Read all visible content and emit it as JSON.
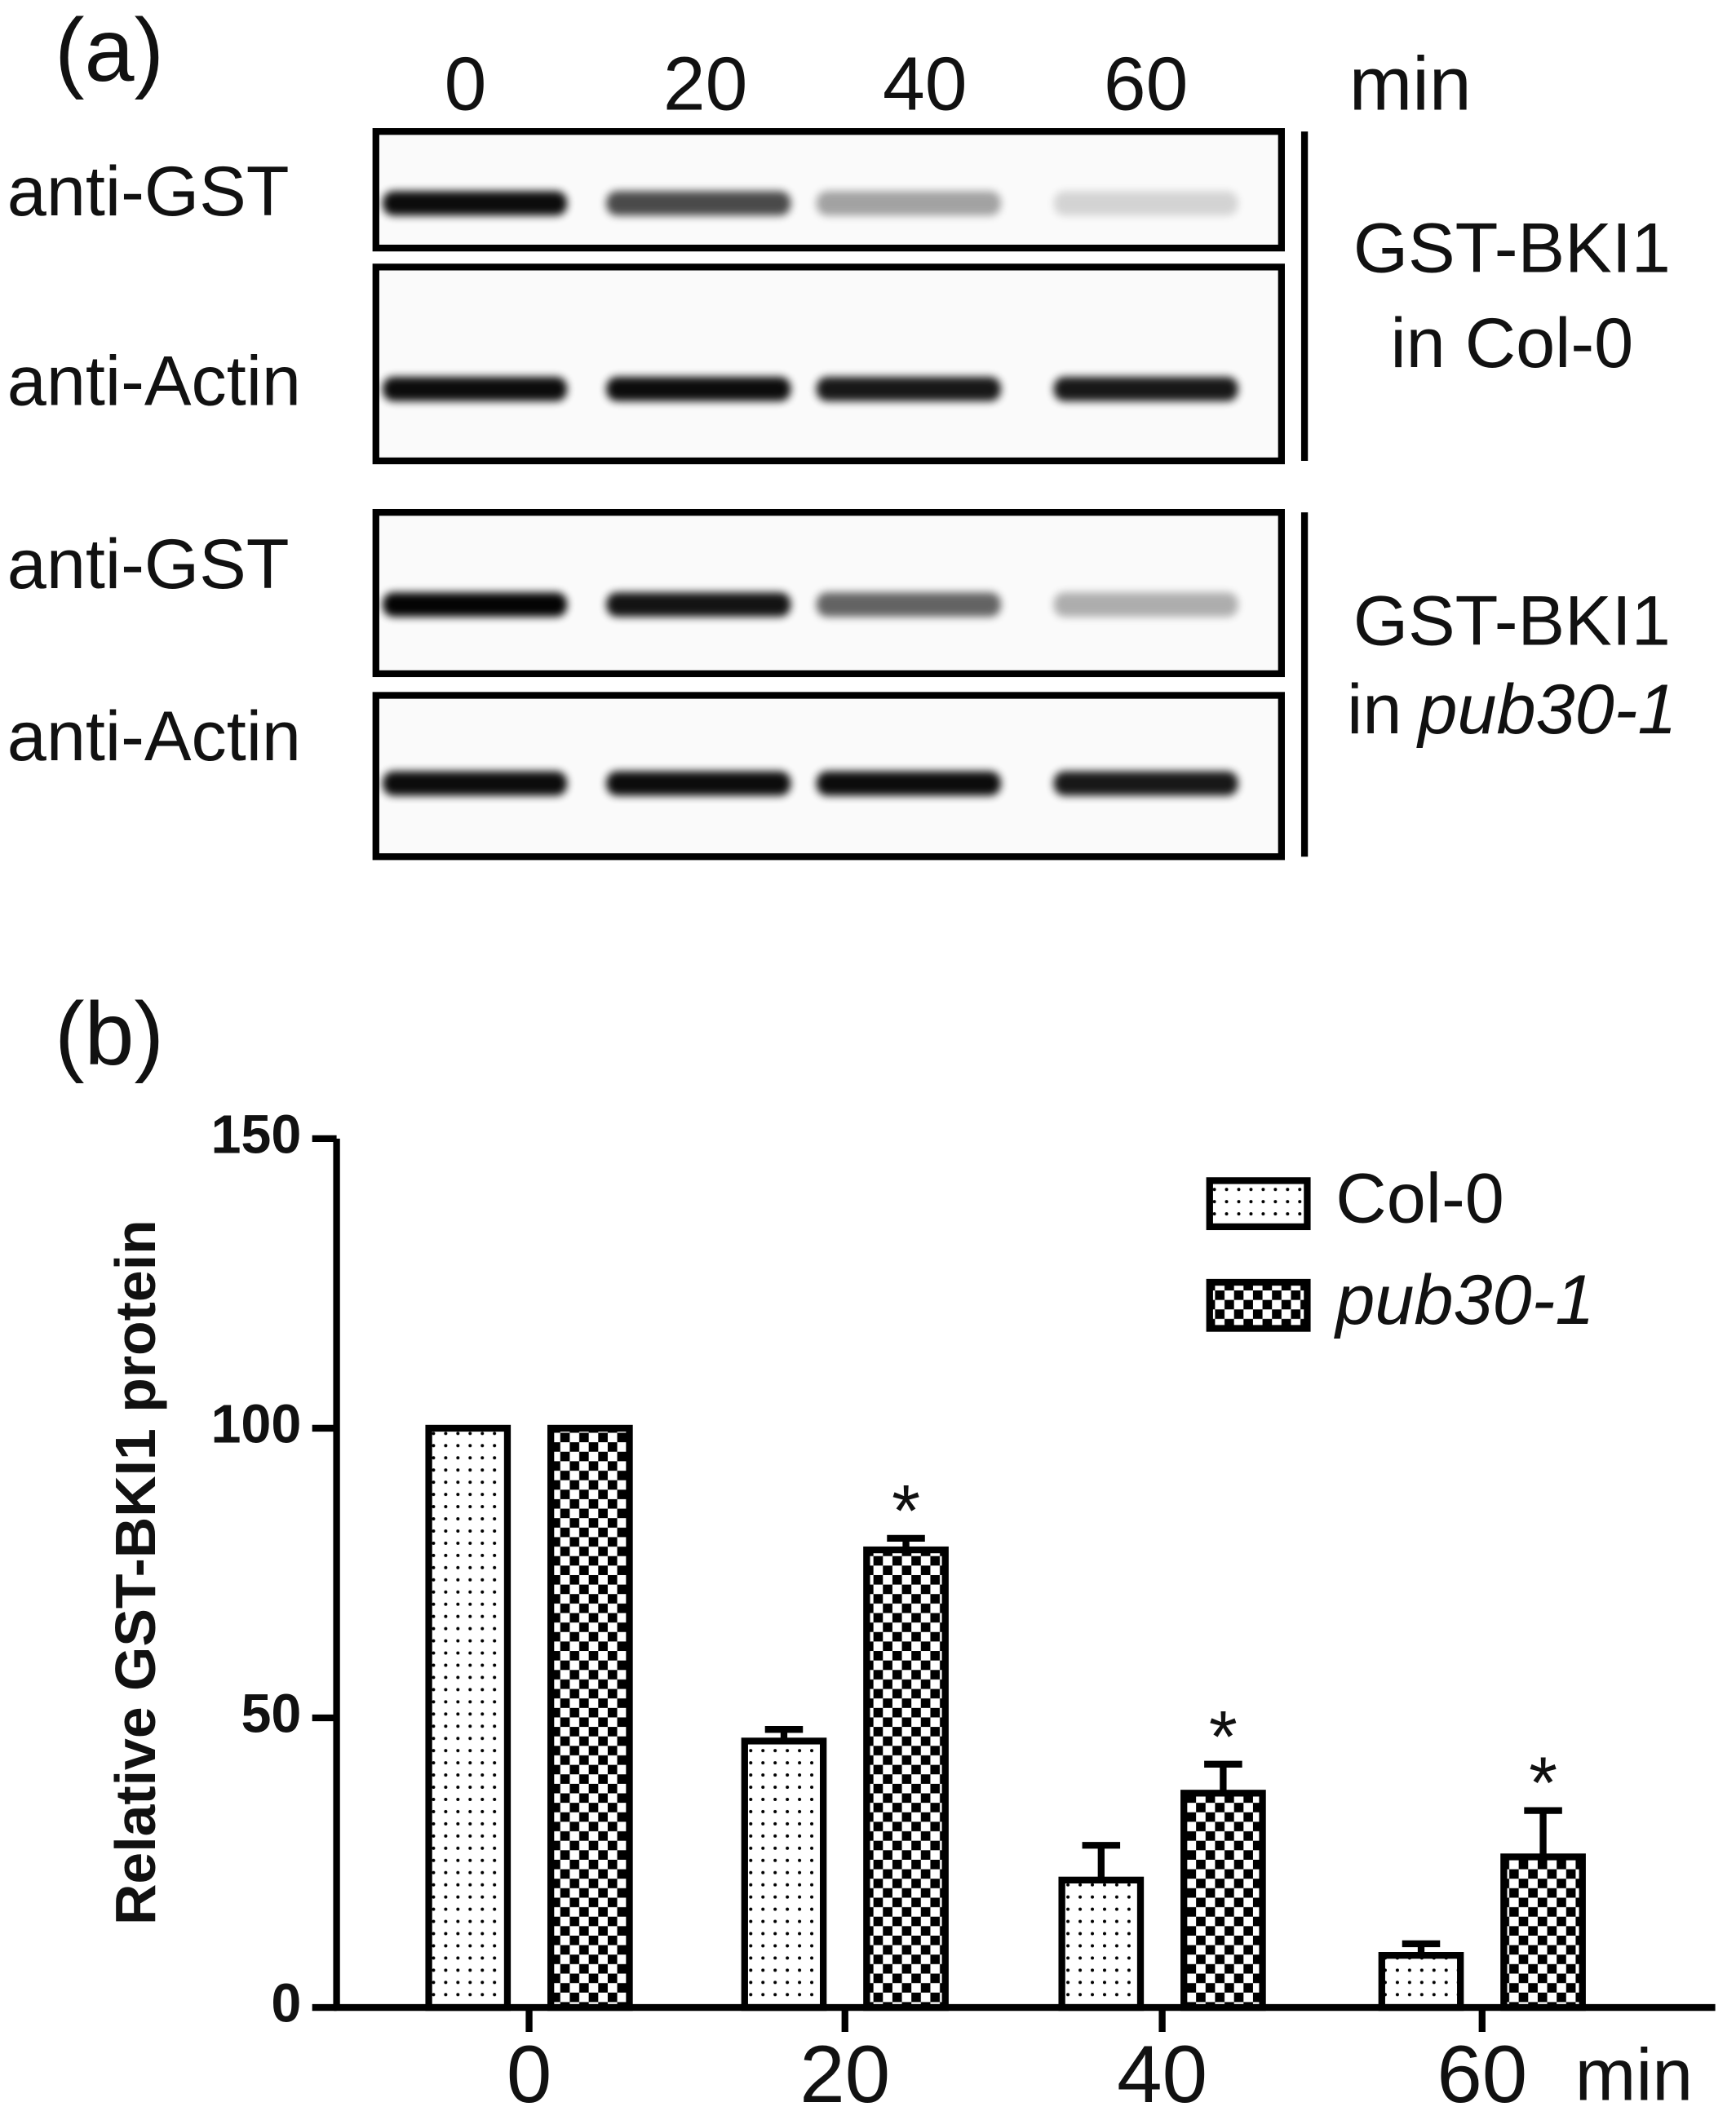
{
  "panel_a": {
    "label": "(a)",
    "times": [
      "0",
      "20",
      "40",
      "60"
    ],
    "time_unit": "min",
    "rows": [
      "anti-GST",
      "anti-Actin",
      "anti-GST",
      "anti-Actin"
    ],
    "groups": [
      {
        "line1": "GST-BKI1",
        "line2": "in Col-0"
      },
      {
        "line1": "GST-BKI1",
        "line2": "in",
        "line2_italic": "pub30-1"
      }
    ]
  },
  "chart_data": {
    "type": "bar",
    "label": "(b)",
    "ylabel": "Relative GST-BKI1 protein",
    "categories": [
      "0",
      "20",
      "40",
      "60"
    ],
    "x_unit": "min",
    "series": [
      {
        "name": "Col-0",
        "pattern": "dots",
        "color": "#000000",
        "values": [
          100,
          46,
          22,
          9
        ],
        "errors": [
          0,
          2,
          6,
          2
        ]
      },
      {
        "name": "pub30-1",
        "italic": true,
        "pattern": "checker",
        "color": "#000000",
        "values": [
          100,
          79,
          37,
          26
        ],
        "errors": [
          0,
          2,
          5,
          8
        ],
        "annotations": [
          null,
          "*",
          "*",
          "*"
        ]
      }
    ],
    "ylim": [
      0,
      150
    ],
    "yticks": [
      0,
      50,
      100,
      150
    ],
    "legend": "upper right"
  }
}
